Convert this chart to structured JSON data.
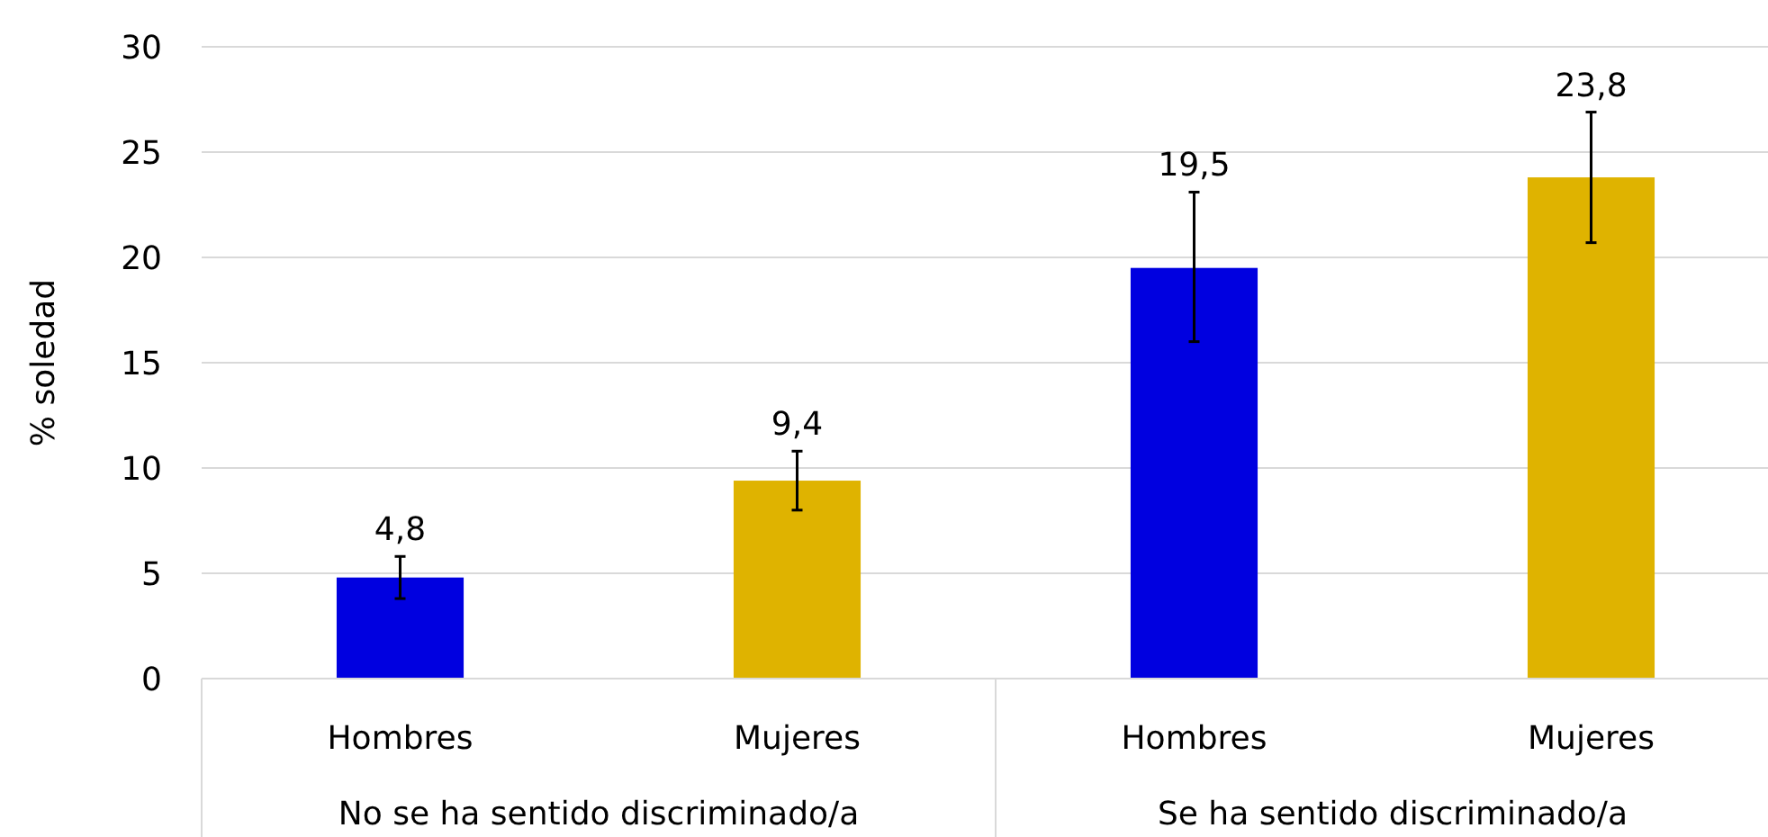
{
  "chart_data": {
    "type": "bar",
    "ylabel": "% soledad",
    "categories": [
      "Hombres",
      "Mujeres",
      "Hombres",
      "Mujeres"
    ],
    "values": [
      4.8,
      9.4,
      19.5,
      23.8
    ],
    "colors": [
      "#0000e0",
      "#dfb300",
      "#0000e0",
      "#dfb300"
    ],
    "errors": [
      [
        3.8,
        5.8
      ],
      [
        8.0,
        10.8
      ],
      [
        16.0,
        23.1
      ],
      [
        20.7,
        26.9
      ]
    ],
    "value_labels": [
      "4,8",
      "9,4",
      "19,5",
      "23,8"
    ],
    "annotations": [
      "No se ha sentido discriminado/a",
      "Se ha sentido discriminado/a"
    ],
    "ylim": [
      0,
      30
    ],
    "yticks": [
      0,
      5,
      10,
      15,
      20,
      25,
      30
    ],
    "grid": "y"
  }
}
